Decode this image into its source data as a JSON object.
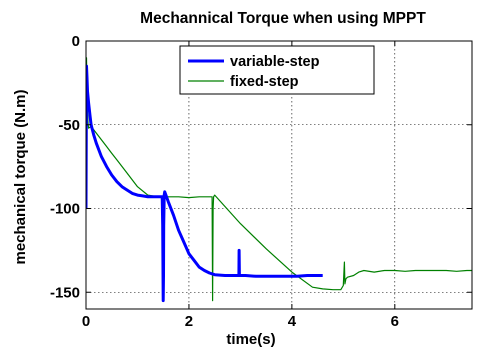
{
  "chart_data": {
    "type": "line",
    "title": "Mechannical Torque when using MPPT",
    "xlabel": "time(s)",
    "ylabel": "mechanical torque (N.m)",
    "xlim": [
      0,
      7.5
    ],
    "ylim": [
      -160,
      0
    ],
    "xticks": [
      0,
      2,
      4,
      6
    ],
    "yticks": [
      0,
      -50,
      -100,
      -150
    ],
    "grid": true,
    "legend_position": "top-right",
    "series": [
      {
        "name": "variable-step",
        "color": "#0000ff",
        "line_width": "thick",
        "x": [
          0,
          0.01,
          0.02,
          0.03,
          0.05,
          0.08,
          0.1,
          0.15,
          0.2,
          0.3,
          0.4,
          0.5,
          0.6,
          0.7,
          0.8,
          0.9,
          1.0,
          1.1,
          1.2,
          1.3,
          1.4,
          1.45,
          1.48,
          1.49,
          1.5,
          1.505,
          1.51,
          1.52,
          1.53,
          1.6,
          1.7,
          1.8,
          1.9,
          2.0,
          2.1,
          2.2,
          2.3,
          2.4,
          2.5,
          2.7,
          2.9,
          2.97,
          2.975,
          2.98,
          2.99,
          3.1,
          3.3,
          3.5,
          3.7,
          3.9,
          4.1,
          4.3,
          4.5,
          4.6
        ],
        "y": [
          -100,
          -15,
          -22,
          -30,
          -37,
          -45,
          -50,
          -56,
          -61,
          -69,
          -75,
          -80,
          -84,
          -87,
          -89,
          -91,
          -92,
          -92.5,
          -93,
          -93,
          -93,
          -93,
          -93,
          -110,
          -155,
          -140,
          -110,
          -92,
          -90,
          -96,
          -104,
          -113,
          -120,
          -127,
          -131,
          -135,
          -137,
          -138.5,
          -139.5,
          -140,
          -140,
          -140,
          -125,
          -140,
          -140,
          -140,
          -140.5,
          -140.5,
          -140.5,
          -140.5,
          -140.5,
          -140,
          -140,
          -140
        ]
      },
      {
        "name": "fixed-step",
        "color": "#008000",
        "line_width": "thin",
        "x": [
          0,
          0.01,
          0.02,
          0.03,
          0.04,
          0.05,
          0.1,
          0.2,
          0.3,
          0.4,
          0.5,
          0.6,
          0.8,
          1.0,
          1.2,
          1.4,
          1.5,
          1.6,
          1.8,
          2.0,
          2.2,
          2.4,
          2.45,
          2.46,
          2.47,
          2.48,
          2.5,
          3.0,
          3.5,
          4.0,
          4.4,
          4.6,
          4.8,
          4.95,
          5.0,
          5.02,
          5.03,
          5.05,
          5.08,
          5.2,
          5.3,
          5.4,
          5.6,
          5.8,
          6.0,
          6.2,
          6.4,
          6.6,
          6.8,
          7.0,
          7.2,
          7.4,
          7.5
        ],
        "y": [
          -100,
          -10,
          -30,
          -42,
          -50,
          -52,
          -51,
          -55,
          -59,
          -63,
          -67,
          -71,
          -79,
          -87,
          -92,
          -93,
          -93,
          -93,
          -93,
          -93.5,
          -93,
          -93,
          -93,
          -155,
          -100,
          -93,
          -92,
          -109,
          -124,
          -138,
          -147,
          -148,
          -148.5,
          -148.5,
          -146,
          -132,
          -145,
          -142,
          -141,
          -140,
          -138,
          -137,
          -138,
          -137,
          -137,
          -137.5,
          -137,
          -137,
          -137,
          -137,
          -137.5,
          -137,
          -137
        ]
      }
    ]
  }
}
